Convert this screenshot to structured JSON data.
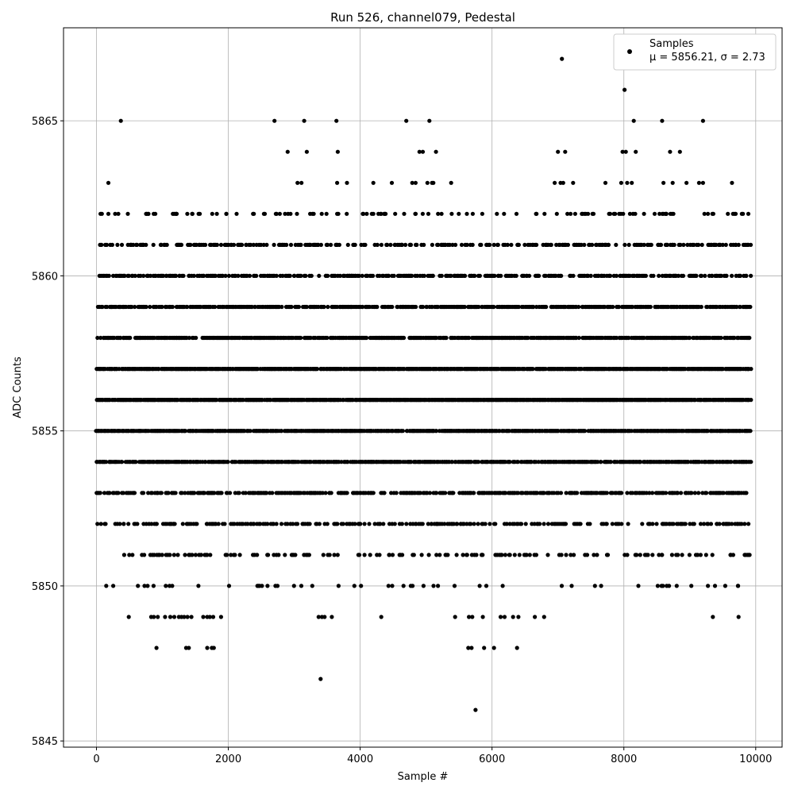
{
  "chart_data": {
    "type": "scatter",
    "title": "Run 526, channel079, Pedestal",
    "xlabel": "Sample #",
    "ylabel": "ADC Counts",
    "xlim": [
      -500,
      10400
    ],
    "ylim": [
      5844.8,
      5868.0
    ],
    "xticks": [
      0,
      2000,
      4000,
      6000,
      8000,
      10000
    ],
    "yticks": [
      5845,
      5850,
      5855,
      5860,
      5865
    ],
    "grid": true,
    "legend_position": "top-right",
    "marker_color": "#000000",
    "series": [
      {
        "name": "Samples",
        "stats_label": "μ = 5856.21, σ = 2.73",
        "mean": 5856.21,
        "sigma": 2.73,
        "x_range": [
          0,
          9930
        ],
        "levels": [
          {
            "y": 5853,
            "ranges": [
              [
                0,
                9930
              ]
            ],
            "density": 0.5
          },
          {
            "y": 5854,
            "ranges": [
              [
                0,
                9930
              ]
            ],
            "density": 0.7
          },
          {
            "y": 5855,
            "ranges": [
              [
                0,
                9930
              ]
            ],
            "density": 0.8
          },
          {
            "y": 5856,
            "ranges": [
              [
                0,
                9930
              ]
            ],
            "density": 0.85
          },
          {
            "y": 5857,
            "ranges": [
              [
                0,
                9930
              ]
            ],
            "density": 0.8
          },
          {
            "y": 5858,
            "ranges": [
              [
                20,
                9930
              ]
            ],
            "density": 0.65
          },
          {
            "y": 5859,
            "ranges": [
              [
                20,
                9930
              ]
            ],
            "density": 0.6
          },
          {
            "y": 5860,
            "ranges": [
              [
                20,
                9930
              ]
            ],
            "density": 0.45
          },
          {
            "y": 5861,
            "ranges": [
              [
                20,
                9930
              ]
            ],
            "density": 0.3
          },
          {
            "y": 5852,
            "ranges": [
              [
                0,
                9930
              ]
            ],
            "density": 0.3
          },
          {
            "y": 5851,
            "ranges": [
              [
                100,
                9930
              ]
            ],
            "density": 0.18
          },
          {
            "y": 5862,
            "ranges": [
              [
                20,
                9930
              ]
            ],
            "density": 0.12
          },
          {
            "y": 5850,
            "ranges": [
              [
                150,
                9930
              ]
            ],
            "density": 0.06
          }
        ],
        "points": [
          [
            370,
            5865
          ],
          [
            2700,
            5865
          ],
          [
            3150,
            5865
          ],
          [
            3640,
            5865
          ],
          [
            4700,
            5865
          ],
          [
            5050,
            5865
          ],
          [
            8150,
            5865
          ],
          [
            8580,
            5865
          ],
          [
            9200,
            5865
          ],
          [
            7060,
            5867
          ],
          [
            8010,
            5866
          ],
          [
            2900,
            5864
          ],
          [
            3190,
            5864
          ],
          [
            3660,
            5864
          ],
          [
            4900,
            5864
          ],
          [
            4950,
            5864
          ],
          [
            5150,
            5864
          ],
          [
            7000,
            5864
          ],
          [
            7110,
            5864
          ],
          [
            7980,
            5864
          ],
          [
            8030,
            5864
          ],
          [
            8180,
            5864
          ],
          [
            8700,
            5864
          ],
          [
            8850,
            5864
          ],
          [
            180,
            5863
          ],
          [
            3050,
            5863
          ],
          [
            3110,
            5863
          ],
          [
            3650,
            5863
          ],
          [
            3800,
            5863
          ],
          [
            4200,
            5863
          ],
          [
            4480,
            5863
          ],
          [
            4790,
            5863
          ],
          [
            4840,
            5863
          ],
          [
            5020,
            5863
          ],
          [
            5090,
            5863
          ],
          [
            5110,
            5863
          ],
          [
            5380,
            5863
          ],
          [
            6950,
            5863
          ],
          [
            7040,
            5863
          ],
          [
            7080,
            5863
          ],
          [
            7230,
            5863
          ],
          [
            7720,
            5863
          ],
          [
            7960,
            5863
          ],
          [
            8050,
            5863
          ],
          [
            8120,
            5863
          ],
          [
            8600,
            5863
          ],
          [
            8740,
            5863
          ],
          [
            8950,
            5863
          ],
          [
            9140,
            5863
          ],
          [
            9200,
            5863
          ],
          [
            9640,
            5863
          ],
          [
            910,
            5848
          ],
          [
            1360,
            5848
          ],
          [
            1400,
            5848
          ],
          [
            1680,
            5848
          ],
          [
            1750,
            5848
          ],
          [
            1780,
            5848
          ],
          [
            5640,
            5848
          ],
          [
            5690,
            5848
          ],
          [
            5880,
            5848
          ],
          [
            6030,
            5848
          ],
          [
            6380,
            5848
          ],
          [
            490,
            5849
          ],
          [
            830,
            5849
          ],
          [
            870,
            5849
          ],
          [
            930,
            5849
          ],
          [
            1040,
            5849
          ],
          [
            1120,
            5849
          ],
          [
            1180,
            5849
          ],
          [
            1250,
            5849
          ],
          [
            1290,
            5849
          ],
          [
            1330,
            5849
          ],
          [
            1380,
            5849
          ],
          [
            1440,
            5849
          ],
          [
            1620,
            5849
          ],
          [
            1680,
            5849
          ],
          [
            1720,
            5849
          ],
          [
            1770,
            5849
          ],
          [
            1890,
            5849
          ],
          [
            3370,
            5849
          ],
          [
            3420,
            5849
          ],
          [
            3460,
            5849
          ],
          [
            3570,
            5849
          ],
          [
            4320,
            5849
          ],
          [
            5440,
            5849
          ],
          [
            5650,
            5849
          ],
          [
            5700,
            5849
          ],
          [
            5860,
            5849
          ],
          [
            6130,
            5849
          ],
          [
            6190,
            5849
          ],
          [
            6320,
            5849
          ],
          [
            6400,
            5849
          ],
          [
            6650,
            5849
          ],
          [
            6790,
            5849
          ],
          [
            9350,
            5849
          ],
          [
            9740,
            5849
          ],
          [
            3400,
            5847
          ],
          [
            5750,
            5846
          ]
        ]
      }
    ]
  }
}
